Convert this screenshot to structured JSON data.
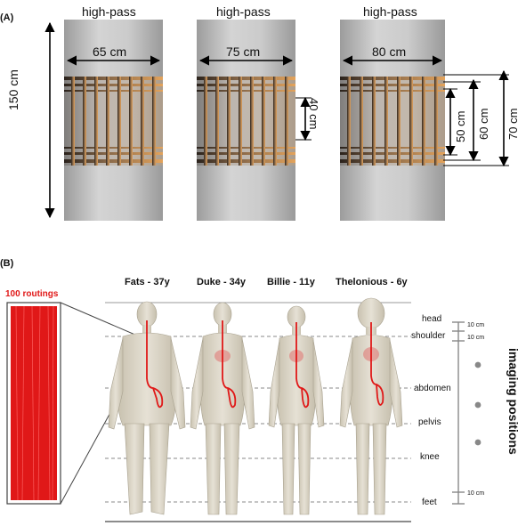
{
  "panel_a": {
    "label": "(A)",
    "coils": [
      {
        "title": "high-pass",
        "diameter": "65 cm"
      },
      {
        "title": "high-pass",
        "diameter": "75 cm"
      },
      {
        "title": "high-pass",
        "diameter": "80 cm"
      }
    ],
    "length_150": "150 cm",
    "length_40": "40 cm",
    "length_50": "50 cm",
    "length_60": "60 cm",
    "length_70": "70 cm"
  },
  "panel_b": {
    "label": "(B)",
    "routings_label": "100 routings",
    "models": [
      "Fats - 37y",
      "Duke - 34y",
      "Billie - 11y",
      "Thelonious - 6y"
    ],
    "positions": [
      "head",
      "shoulder",
      "abdomen",
      "pelvis",
      "knee",
      "feet"
    ],
    "spacing": [
      "10 cm",
      "10 cm",
      "10 cm"
    ],
    "axis_title": "imaging positions"
  },
  "colors": {
    "cylinder": "#b9b9b9",
    "wire": "#e01818",
    "rung_light": "#d9964e",
    "rung_dark": "#3a2c22",
    "body": "#d9d3c4"
  }
}
